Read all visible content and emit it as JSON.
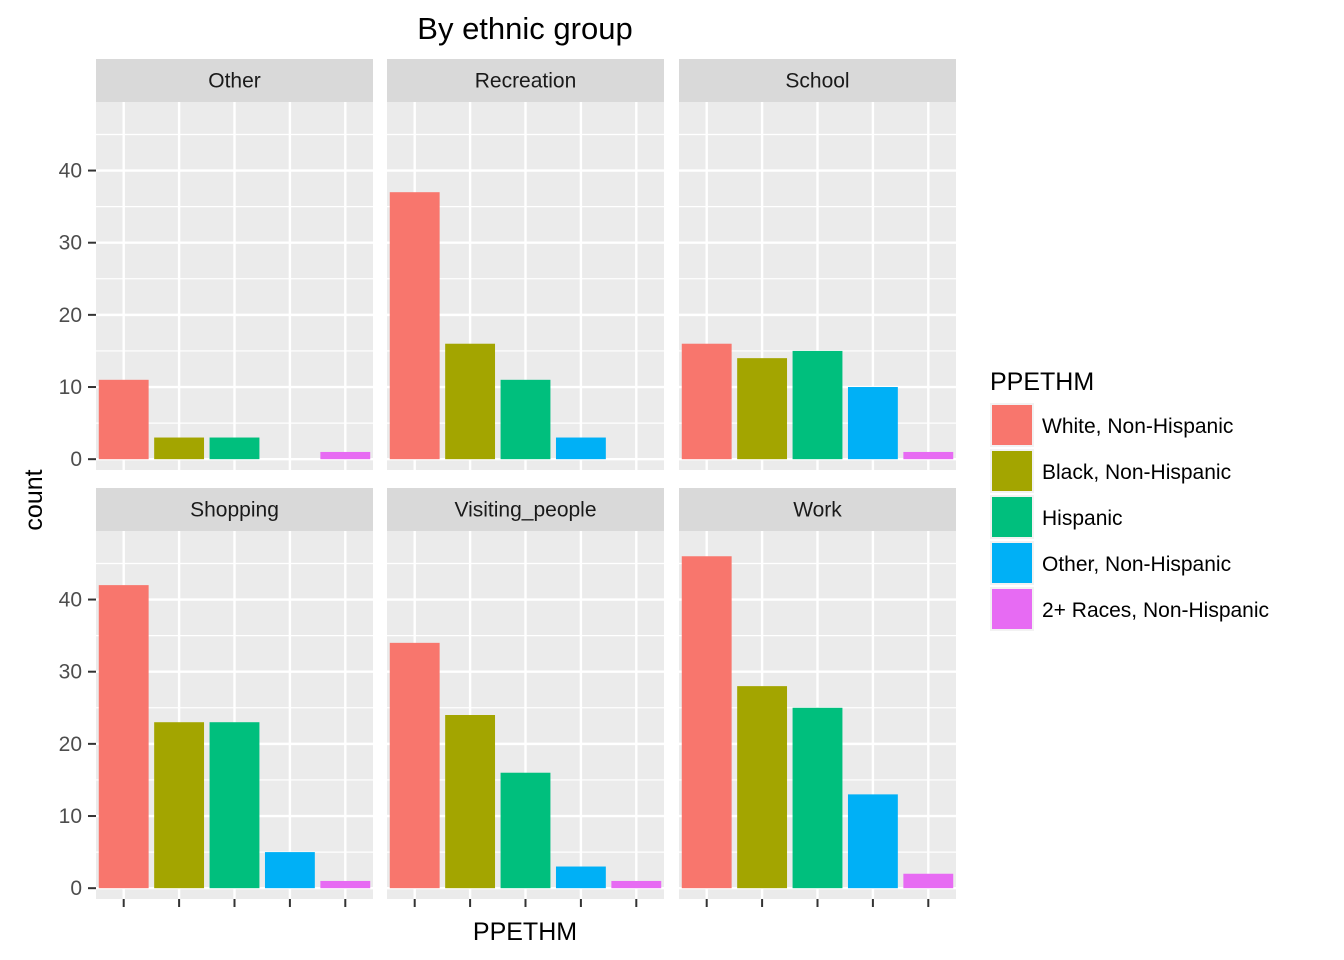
{
  "chart_data": {
    "type": "bar",
    "title": "By ethnic group",
    "xlabel": "PPETHM",
    "ylabel": "count",
    "ylim": [
      -1.5,
      49.5
    ],
    "yticks": [
      0,
      10,
      20,
      30,
      40
    ],
    "grid": true,
    "legend_position": "right",
    "legend": {
      "title": "PPETHM",
      "entries": [
        {
          "name": "White, Non-Hispanic",
          "color": "#F8766D"
        },
        {
          "name": "Black, Non-Hispanic",
          "color": "#A3A500"
        },
        {
          "name": "Hispanic",
          "color": "#00BF7D"
        },
        {
          "name": "Other, Non-Hispanic",
          "color": "#00B0F6"
        },
        {
          "name": "2+ Races, Non-Hispanic",
          "color": "#E76BF3"
        }
      ]
    },
    "facet_layout": {
      "rows": 2,
      "cols": 3
    },
    "facets": [
      {
        "name": "Other",
        "values": [
          11,
          3,
          3,
          0,
          1
        ]
      },
      {
        "name": "Recreation",
        "values": [
          37,
          16,
          11,
          3,
          0
        ]
      },
      {
        "name": "School",
        "values": [
          16,
          14,
          15,
          10,
          1
        ]
      },
      {
        "name": "Shopping",
        "values": [
          42,
          23,
          23,
          5,
          1
        ]
      },
      {
        "name": "Visiting_people",
        "values": [
          34,
          24,
          16,
          3,
          1
        ]
      },
      {
        "name": "Work",
        "values": [
          46,
          28,
          25,
          13,
          2
        ]
      }
    ],
    "colors": {
      "panel_background": "#EBEBEB",
      "strip_background": "#D9D9D9",
      "grid": "#FFFFFF",
      "text": "#000000",
      "tick_text": "#4D4D4D"
    }
  }
}
